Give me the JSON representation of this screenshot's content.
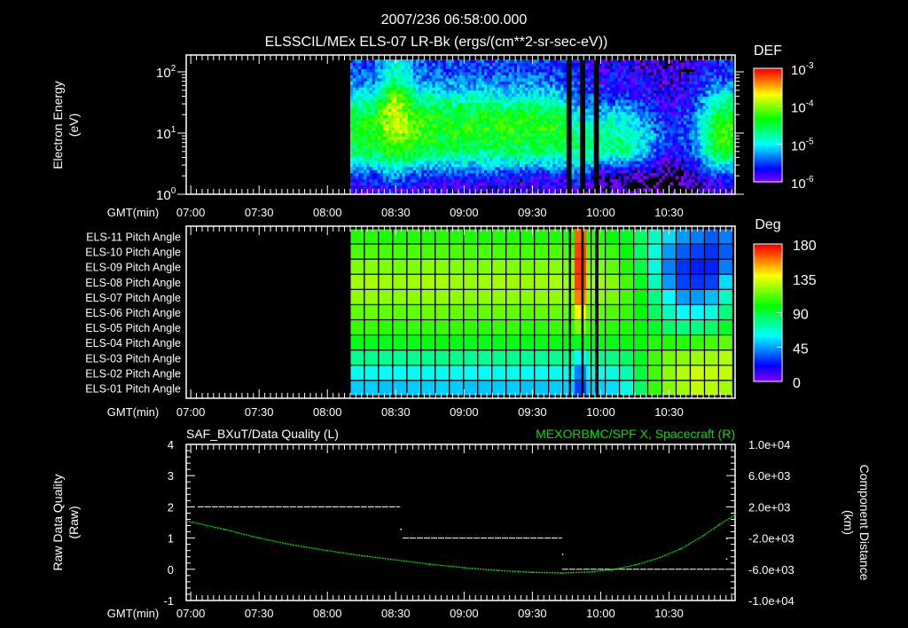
{
  "header": {
    "title": "2007/236 06:58:00.000",
    "subtitle": "ELSSCIL/MEx ELS-07 LR-Bk  (ergs/(cm**2-sr-sec-eV))"
  },
  "time_axis": {
    "label": "GMT(min)",
    "start": "06:58",
    "end": "10:59",
    "ticks": [
      "07:00",
      "07:30",
      "08:00",
      "08:30",
      "09:00",
      "09:30",
      "10:00",
      "10:30"
    ]
  },
  "chart_data": [
    {
      "type": "heatmap",
      "name": "electron-spectrogram",
      "ylabel": "Electron Energy",
      "yunit": "(eV)",
      "yscale": "log",
      "ylim_log10": [
        0,
        2.275
      ],
      "ytick_labels": [
        {
          "base": "10",
          "exp": "0"
        },
        {
          "base": "10",
          "exp": "1"
        },
        {
          "base": "10",
          "exp": "2"
        }
      ],
      "colorbar": {
        "title": "DEF",
        "range_log10": [
          -6,
          -3
        ],
        "tick_labels": [
          {
            "base": "10",
            "exp": "-3"
          },
          {
            "base": "10",
            "exp": "-4"
          },
          {
            "base": "10",
            "exp": "-5"
          },
          {
            "base": "10",
            "exp": "-6"
          }
        ]
      },
      "times": [
        "08:10",
        "08:20",
        "08:30",
        "08:40",
        "08:50",
        "09:00",
        "09:10",
        "09:20",
        "09:30",
        "09:40",
        "09:50",
        "10:00",
        "10:10",
        "10:20",
        "10:30",
        "10:40",
        "10:50",
        "10:58"
      ],
      "energy_log10": [
        0.1,
        0.3,
        0.5,
        0.7,
        0.9,
        1.1,
        1.3,
        1.5,
        1.7,
        1.9,
        2.1
      ],
      "log10_def": [
        [
          -5.9,
          -5.8,
          -5.7,
          -5.8,
          -5.9,
          -5.9,
          -5.9,
          -5.9,
          -5.9,
          -5.9,
          -5.8,
          -6.1,
          -6.1,
          -6.2,
          -6.3,
          -6.2,
          -5.9,
          -5.9
        ],
        [
          -5.6,
          -5.5,
          -5.3,
          -5.5,
          -5.6,
          -5.6,
          -5.6,
          -5.7,
          -5.7,
          -5.7,
          -5.5,
          -6.0,
          -6.0,
          -6.1,
          -6.2,
          -6.0,
          -5.6,
          -5.6
        ],
        [
          -5.1,
          -5.0,
          -4.7,
          -5.0,
          -5.1,
          -5.1,
          -5.1,
          -5.1,
          -5.1,
          -5.1,
          -5.0,
          -5.3,
          -5.3,
          -5.6,
          -6.0,
          -5.7,
          -5.0,
          -5.0
        ],
        [
          -4.6,
          -4.5,
          -4.3,
          -4.5,
          -4.6,
          -4.6,
          -4.6,
          -4.6,
          -4.6,
          -4.6,
          -4.7,
          -4.7,
          -4.7,
          -5.2,
          -5.8,
          -5.5,
          -4.4,
          -4.4
        ],
        [
          -4.4,
          -4.4,
          -4.0,
          -4.3,
          -4.4,
          -4.4,
          -4.4,
          -4.4,
          -4.4,
          -4.4,
          -4.7,
          -4.7,
          -4.7,
          -5.0,
          -5.6,
          -5.4,
          -4.3,
          -4.3
        ],
        [
          -4.3,
          -4.3,
          -3.8,
          -4.2,
          -4.3,
          -4.3,
          -4.3,
          -4.3,
          -4.3,
          -4.3,
          -4.8,
          -4.8,
          -4.8,
          -5.2,
          -5.7,
          -5.4,
          -4.3,
          -4.2
        ],
        [
          -4.5,
          -4.4,
          -3.7,
          -4.3,
          -4.4,
          -4.4,
          -4.4,
          -4.4,
          -4.4,
          -4.4,
          -5.0,
          -5.1,
          -5.0,
          -5.4,
          -5.7,
          -5.5,
          -4.5,
          -4.4
        ],
        [
          -4.8,
          -4.7,
          -3.8,
          -4.6,
          -4.7,
          -4.7,
          -4.7,
          -4.8,
          -4.7,
          -4.8,
          -5.3,
          -5.4,
          -5.4,
          -5.6,
          -5.8,
          -5.6,
          -4.8,
          -4.7
        ],
        [
          -5.2,
          -5.1,
          -4.2,
          -5.0,
          -5.1,
          -5.1,
          -5.1,
          -5.2,
          -5.1,
          -5.2,
          -5.5,
          -5.6,
          -5.6,
          -5.7,
          -5.9,
          -5.7,
          -5.2,
          -5.1
        ],
        [
          -5.4,
          -5.4,
          -4.6,
          -5.3,
          -5.4,
          -5.4,
          -5.4,
          -5.4,
          -5.4,
          -5.5,
          -5.6,
          -5.7,
          -5.7,
          -5.8,
          -5.9,
          -5.8,
          -5.5,
          -5.5
        ],
        [
          -5.5,
          -5.5,
          -4.8,
          -5.4,
          -5.5,
          -5.5,
          -5.5,
          -5.5,
          -5.5,
          -5.6,
          -5.7,
          -5.8,
          -5.8,
          -5.9,
          -6.0,
          -5.9,
          -5.6,
          -5.6
        ]
      ],
      "data_gaps": [
        [
          "09:46:00",
          "09:47:00"
        ],
        [
          "09:51:30",
          "09:52:30"
        ],
        [
          "09:57:30",
          "09:59:00"
        ]
      ]
    },
    {
      "type": "heatmap",
      "name": "pitch-angle",
      "row_labels": [
        "ELS-11 Pitch Angle",
        "ELS-10 Pitch Angle",
        "ELS-09 Pitch Angle",
        "ELS-08 Pitch Angle",
        "ELS-07 Pitch Angle",
        "ELS-06 Pitch Angle",
        "ELS-05 Pitch Angle",
        "ELS-04 Pitch Angle",
        "ELS-03 Pitch Angle",
        "ELS-02 Pitch Angle",
        "ELS-01 Pitch Angle"
      ],
      "colorbar": {
        "title": "Deg",
        "range": [
          0,
          180
        ],
        "tick_labels": [
          "180",
          "135",
          "90",
          "45",
          "0"
        ]
      },
      "start": "08:10",
      "end": "10:58",
      "columns": 27,
      "values_deg": [
        [
          105,
          105,
          104,
          104,
          105,
          105,
          106,
          105,
          104,
          104,
          105,
          105,
          104,
          104,
          105,
          105,
          104,
          105,
          100,
          95,
          85,
          70,
          55,
          45,
          40,
          35,
          40
        ],
        [
          112,
          112,
          111,
          111,
          112,
          112,
          113,
          112,
          111,
          111,
          112,
          112,
          111,
          111,
          112,
          112,
          111,
          112,
          108,
          100,
          85,
          65,
          45,
          35,
          30,
          28,
          35
        ],
        [
          120,
          121,
          120,
          119,
          120,
          121,
          121,
          120,
          119,
          120,
          121,
          120,
          119,
          120,
          121,
          120,
          119,
          120,
          115,
          105,
          90,
          65,
          40,
          28,
          25,
          25,
          40
        ],
        [
          125,
          126,
          125,
          124,
          125,
          126,
          126,
          125,
          124,
          125,
          126,
          125,
          124,
          125,
          126,
          125,
          124,
          125,
          120,
          110,
          95,
          70,
          45,
          30,
          28,
          30,
          55
        ],
        [
          122,
          123,
          122,
          121,
          122,
          123,
          123,
          122,
          121,
          122,
          123,
          122,
          121,
          122,
          123,
          122,
          121,
          122,
          118,
          110,
          100,
          80,
          60,
          45,
          45,
          50,
          70
        ],
        [
          115,
          116,
          115,
          114,
          115,
          116,
          116,
          115,
          114,
          115,
          116,
          115,
          114,
          115,
          116,
          115,
          114,
          115,
          112,
          108,
          100,
          85,
          70,
          60,
          60,
          65,
          80
        ],
        [
          108,
          108,
          107,
          107,
          108,
          108,
          109,
          108,
          107,
          107,
          108,
          108,
          107,
          107,
          108,
          108,
          107,
          108,
          106,
          104,
          100,
          95,
          85,
          80,
          80,
          85,
          95
        ],
        [
          97,
          97,
          96,
          96,
          97,
          97,
          98,
          97,
          96,
          96,
          97,
          97,
          96,
          96,
          97,
          97,
          96,
          97,
          97,
          98,
          100,
          105,
          105,
          105,
          108,
          110,
          115
        ],
        [
          78,
          78,
          77,
          77,
          78,
          78,
          79,
          78,
          77,
          77,
          78,
          78,
          77,
          77,
          78,
          78,
          77,
          78,
          80,
          85,
          95,
          110,
          118,
          122,
          125,
          125,
          128
        ],
        [
          62,
          62,
          61,
          61,
          62,
          62,
          63,
          62,
          61,
          61,
          62,
          62,
          61,
          61,
          62,
          62,
          61,
          62,
          65,
          72,
          90,
          110,
          122,
          128,
          132,
          130,
          130
        ],
        [
          52,
          52,
          51,
          51,
          52,
          52,
          53,
          52,
          51,
          51,
          52,
          52,
          51,
          51,
          52,
          52,
          51,
          52,
          55,
          65,
          85,
          108,
          120,
          125,
          130,
          128,
          125
        ]
      ],
      "spike": {
        "start": "09:48:30",
        "end": "09:53:30",
        "values_deg": [
          165,
          170,
          172,
          170,
          160,
          140,
          120,
          95,
          60,
          40,
          30
        ]
      },
      "data_gaps": [
        [
          "09:46:00",
          "09:47:00"
        ],
        [
          "09:51:30",
          "09:52:30"
        ],
        [
          "09:57:30",
          "09:59:00"
        ]
      ]
    },
    {
      "type": "line",
      "name": "quality-and-position",
      "left_title": "SAF_BXuT/Data Quality (L)",
      "right_title": "MEXORBMC/SPF X, Spacecraft (R)",
      "ylabel_left": "Raw Data Quality",
      "ylabel_left_unit": "(Raw)",
      "ylabel_right": "Component Distance",
      "ylabel_right_unit": "(km)",
      "ylim_left": [
        -1,
        4
      ],
      "ytick_left": [
        "4",
        "3",
        "2",
        "1",
        "0",
        "-1"
      ],
      "ylim_right": [
        -10000,
        10000
      ],
      "ytick_right": [
        "1.0e+04",
        "6.0e+03",
        "2.0e+03",
        "-2.0e+03",
        "-6.0e+03",
        "-1.0e+04"
      ],
      "quality_segments": [
        {
          "start": "07:03",
          "end": "08:32",
          "value": 2
        },
        {
          "start": "08:33",
          "end": "09:43",
          "value": 1
        },
        {
          "start": "09:43",
          "end": "10:55",
          "value": 0
        }
      ],
      "quality_points": [
        {
          "t": "08:32",
          "value": 1.3
        },
        {
          "t": "09:43",
          "value": 0.5
        },
        {
          "t": "10:55",
          "value": 1.0
        },
        {
          "t": "10:55",
          "value": 0.35
        }
      ],
      "colors": {
        "position": "#00e000",
        "quality": "#ffffff"
      },
      "position_x_km": {
        "t": [
          "06:58",
          "07:15",
          "07:30",
          "07:45",
          "08:00",
          "08:15",
          "08:30",
          "08:45",
          "09:00",
          "09:15",
          "09:30",
          "09:43",
          "09:55",
          "10:05",
          "10:15",
          "10:25",
          "10:35",
          "10:45",
          "10:52",
          "10:59"
        ],
        "v": [
          200,
          -900,
          -2000,
          -2900,
          -3600,
          -4250,
          -4800,
          -5350,
          -5800,
          -6150,
          -6400,
          -6480,
          -6350,
          -6050,
          -5450,
          -4600,
          -3400,
          -1700,
          -300,
          1000
        ]
      }
    }
  ]
}
